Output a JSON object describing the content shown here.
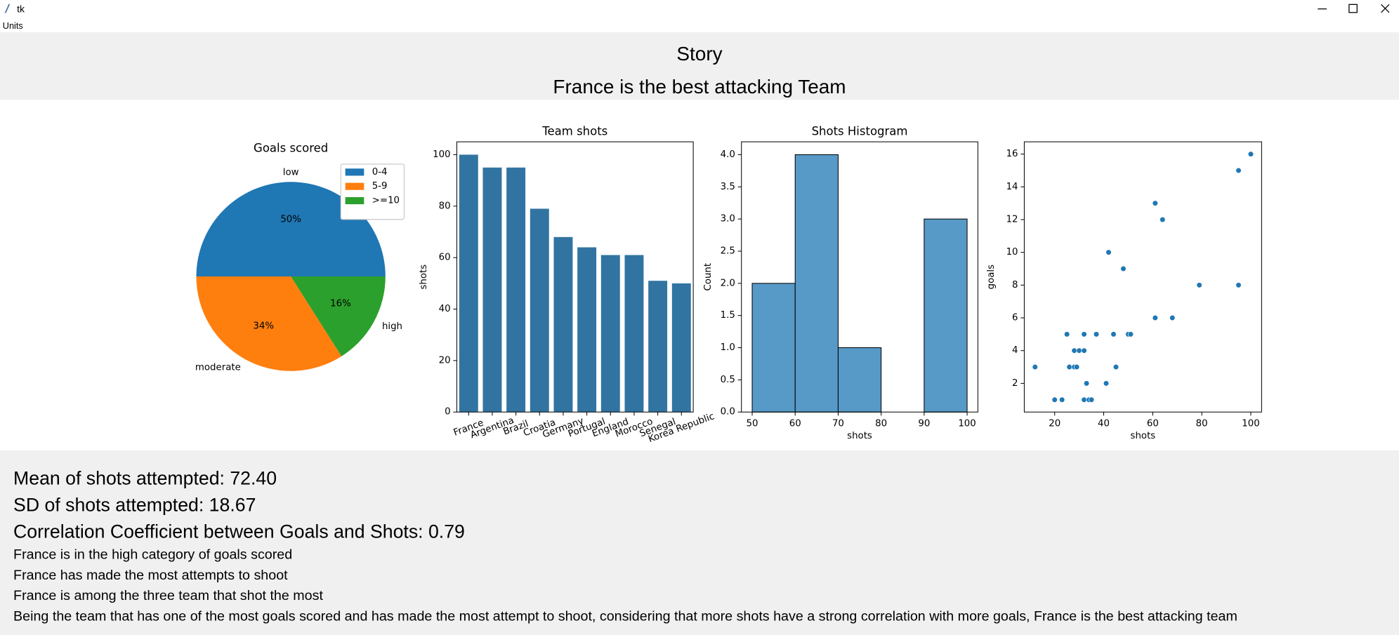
{
  "window": {
    "title": "tk"
  },
  "menu": [
    "Units"
  ],
  "header": {
    "title": "Story",
    "subtitle": "France is the best attacking Team"
  },
  "chart_data": [
    {
      "type": "pie",
      "title": "Goals scored",
      "categories": [
        "0-4",
        "5-9",
        ">=10"
      ],
      "labels": [
        "low",
        "moderate",
        "high"
      ],
      "values": [
        50,
        34,
        16
      ],
      "value_labels": [
        "50%",
        "34%",
        "16%"
      ],
      "colors": [
        "#1f77b4",
        "#ff7f0e",
        "#2ca02c"
      ],
      "legend": "upper right"
    },
    {
      "type": "bar",
      "title": "Team shots",
      "ylabel": "shots",
      "categories": [
        "France",
        "Argentina",
        "Brazil",
        "Croatia",
        "Germany",
        "Portugal",
        "England",
        "Morocco",
        "Senegal",
        "Korea Republic"
      ],
      "values": [
        100,
        95,
        95,
        79,
        68,
        64,
        61,
        61,
        51,
        50
      ],
      "color": "#3274a1",
      "ylim": [
        0,
        105
      ],
      "yticks": [
        0,
        20,
        40,
        60,
        80,
        100
      ]
    },
    {
      "type": "histogram",
      "title": "Shots Histogram",
      "xlabel": "shots",
      "ylabel": "Count",
      "bins": [
        50,
        60,
        70,
        80,
        90,
        100
      ],
      "values": [
        2,
        4,
        1,
        0,
        3
      ],
      "color": "#5799c7",
      "xlim": [
        47.5,
        102.5
      ],
      "xticks": [
        50,
        60,
        70,
        80,
        90,
        100
      ],
      "ylim": [
        0,
        4.2
      ],
      "yticks": [
        {
          "value": 0,
          "label": "0.0"
        },
        0.5,
        {
          "value": 1,
          "label": "1.0"
        },
        1.5,
        {
          "value": 2,
          "label": "2.0"
        },
        2.5,
        {
          "value": 3,
          "label": "3.0"
        },
        3.5,
        {
          "value": 4,
          "label": "4.0"
        }
      ]
    },
    {
      "type": "scatter",
      "xlabel": "shots",
      "ylabel": "goals",
      "color": "#1f77b4",
      "x": [
        12,
        20,
        23,
        25,
        26,
        28,
        28,
        29,
        30,
        32,
        32,
        33,
        32,
        34,
        35,
        37,
        41,
        42,
        44,
        45,
        48,
        50,
        51,
        61,
        61,
        64,
        68,
        79,
        95,
        95,
        100
      ],
      "values": [
        3,
        1,
        1,
        5,
        3,
        3,
        4,
        3,
        4,
        5,
        4,
        2,
        1,
        1,
        1,
        5,
        2,
        10,
        5,
        3,
        9,
        5,
        5,
        13,
        6,
        12,
        6,
        8,
        15,
        8,
        16
      ],
      "xlim": [
        7.6,
        104.4
      ],
      "xticks": [
        20,
        40,
        60,
        80,
        100
      ],
      "ylim": [
        0.25,
        16.75
      ],
      "yticks": [
        2,
        4,
        6,
        8,
        10,
        12,
        14,
        16
      ]
    }
  ],
  "summary": {
    "stats": [
      "Mean of shots attempted: 72.40",
      "SD of shots attempted: 18.67",
      "Correlation Coefficient between Goals and Shots:  0.79"
    ],
    "conclusions": [
      "France is in the high category of goals scored",
      "France has made the most attempts to shoot",
      "France is among the three team that shot the most",
      "Being the team that has one of the most goals scored and has made the most attempt to shoot, considering that more shots have a strong correlation with more goals, France is the best attacking team"
    ]
  }
}
